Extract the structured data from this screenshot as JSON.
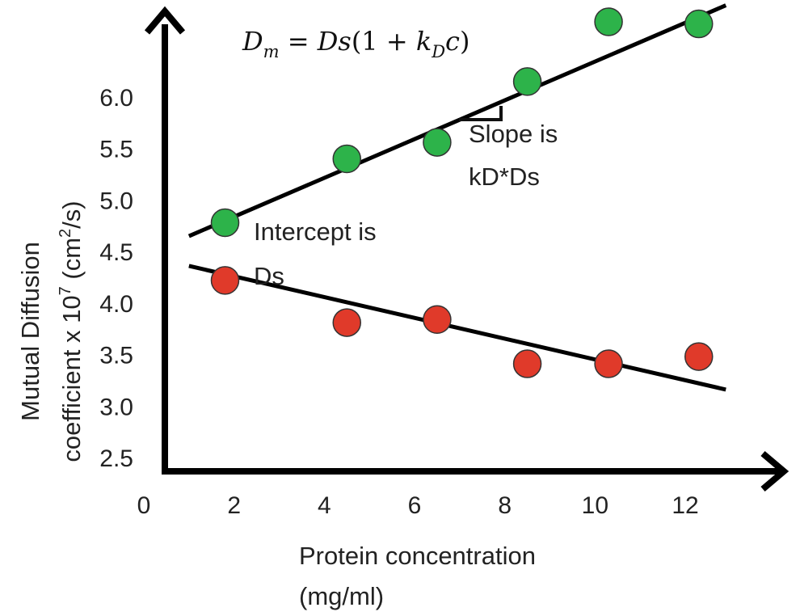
{
  "chart_data": {
    "type": "scatter",
    "xlabel": [
      "Protein concentration",
      "(mg/ml)"
    ],
    "ylabel": [
      "Mutual Diffusion",
      "coefficient x 10",
      "7",
      " (cm",
      "2",
      "/s)"
    ],
    "xlim": [
      0,
      13
    ],
    "ylim": [
      2.5,
      6.8
    ],
    "xticks": [
      "0",
      "2",
      "4",
      "6",
      "8",
      "10",
      "12"
    ],
    "yticks": [
      "2.5",
      "3.0",
      "3.5",
      "4.0",
      "4.5",
      "5.0",
      "5.5",
      "6.0"
    ],
    "series": [
      {
        "color": "#2db34a",
        "points": [
          [
            1.8,
            4.78
          ],
          [
            4.5,
            5.4
          ],
          [
            6.5,
            5.56
          ],
          [
            8.5,
            6.15
          ],
          [
            10.3,
            6.73
          ],
          [
            12.3,
            6.71
          ]
        ],
        "fit": [
          [
            1.0,
            4.65
          ],
          [
            12.9,
            6.89
          ]
        ]
      },
      {
        "color": "#e03a2a",
        "points": [
          [
            1.8,
            4.22
          ],
          [
            4.5,
            3.81
          ],
          [
            6.5,
            3.84
          ],
          [
            8.5,
            3.41
          ],
          [
            10.3,
            3.41
          ],
          [
            12.3,
            3.48
          ]
        ],
        "fit": [
          [
            1.0,
            4.36
          ],
          [
            12.9,
            3.16
          ]
        ]
      }
    ],
    "formula": {
      "D1": "D",
      "m": "m",
      "eq": " = ",
      "D2": "Ds",
      "open": "(1 + ",
      "k": "k",
      "sub": "D",
      "c": "c",
      "close": ")"
    },
    "annotations": {
      "slope": [
        "Slope is",
        "kD*Ds"
      ],
      "intercept": [
        "Intercept is",
        "Ds"
      ]
    },
    "grid": false
  }
}
